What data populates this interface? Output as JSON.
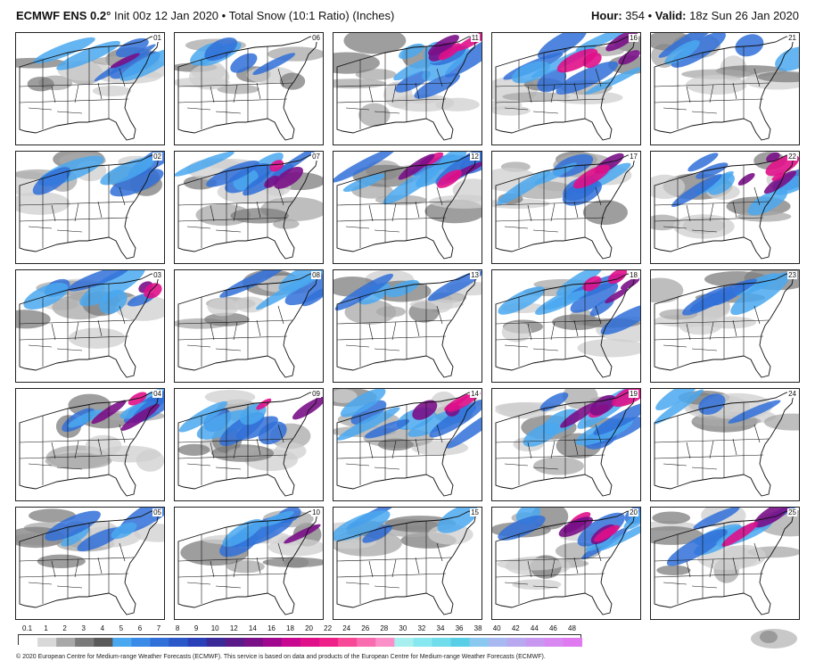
{
  "header": {
    "brand": "ECMWF ENS 0.2°",
    "subtitle": "Init 00z 12 Jan 2020 • Total Snow (10:1 Ratio) (Inches)",
    "hour_label": "Hour:",
    "hour_value": "354",
    "valid_label": "Valid:",
    "valid_value": "18z Sun 26 Jan 2020"
  },
  "panels": [
    {
      "member": "01",
      "intensity": 0.45
    },
    {
      "member": "06",
      "intensity": 0.35
    },
    {
      "member": "11",
      "intensity": 0.85
    },
    {
      "member": "16",
      "intensity": 0.75
    },
    {
      "member": "21",
      "intensity": 0.25
    },
    {
      "member": "02",
      "intensity": 0.25
    },
    {
      "member": "07",
      "intensity": 0.7
    },
    {
      "member": "12",
      "intensity": 0.85
    },
    {
      "member": "17",
      "intensity": 0.6
    },
    {
      "member": "22",
      "intensity": 0.9
    },
    {
      "member": "03",
      "intensity": 0.55
    },
    {
      "member": "08",
      "intensity": 0.35
    },
    {
      "member": "13",
      "intensity": 0.15
    },
    {
      "member": "18",
      "intensity": 0.75
    },
    {
      "member": "23",
      "intensity": 0.4
    },
    {
      "member": "04",
      "intensity": 0.7
    },
    {
      "member": "09",
      "intensity": 0.6
    },
    {
      "member": "14",
      "intensity": 0.8
    },
    {
      "member": "19",
      "intensity": 0.85
    },
    {
      "member": "24",
      "intensity": 0.1
    },
    {
      "member": "05",
      "intensity": 0.35
    },
    {
      "member": "10",
      "intensity": 0.45
    },
    {
      "member": "15",
      "intensity": 0.1
    },
    {
      "member": "20",
      "intensity": 0.9
    },
    {
      "member": "25",
      "intensity": 0.5
    }
  ],
  "legend": {
    "ticks": [
      "0.1",
      "1",
      "2",
      "3",
      "4",
      "5",
      "6",
      "7",
      "8",
      "9",
      "10",
      "12",
      "14",
      "16",
      "18",
      "20",
      "22",
      "24",
      "26",
      "28",
      "30",
      "32",
      "34",
      "36",
      "38",
      "40",
      "42",
      "44",
      "46",
      "48"
    ],
    "colors": [
      "#ffffff",
      "#d8d8d8",
      "#a8a8a8",
      "#7a7a7a",
      "#5a5a5a",
      "#4aa8f0",
      "#3a8ae8",
      "#3070d8",
      "#2a58c8",
      "#2a40b8",
      "#3a2a98",
      "#5a1a88",
      "#7a1088",
      "#a00890",
      "#c80890",
      "#e0108a",
      "#f0208a",
      "#f84898",
      "#fa6cb0",
      "#fb90c8",
      "#a8f0f0",
      "#88e8f0",
      "#70dcec",
      "#58cfe6",
      "#8ac8f0",
      "#a8b8f0",
      "#b8a8f0",
      "#c898f0",
      "#d888f0",
      "#e07af0"
    ]
  },
  "footer": {
    "copyright": "© 2020 European Centre for Medium-range Weather Forecasts (ECMWF). This service is based on data and products of the European Centre for Medium-range Weather Forecasts (ECMWF)."
  },
  "logo": {
    "icon": "weatherbell-logo"
  }
}
